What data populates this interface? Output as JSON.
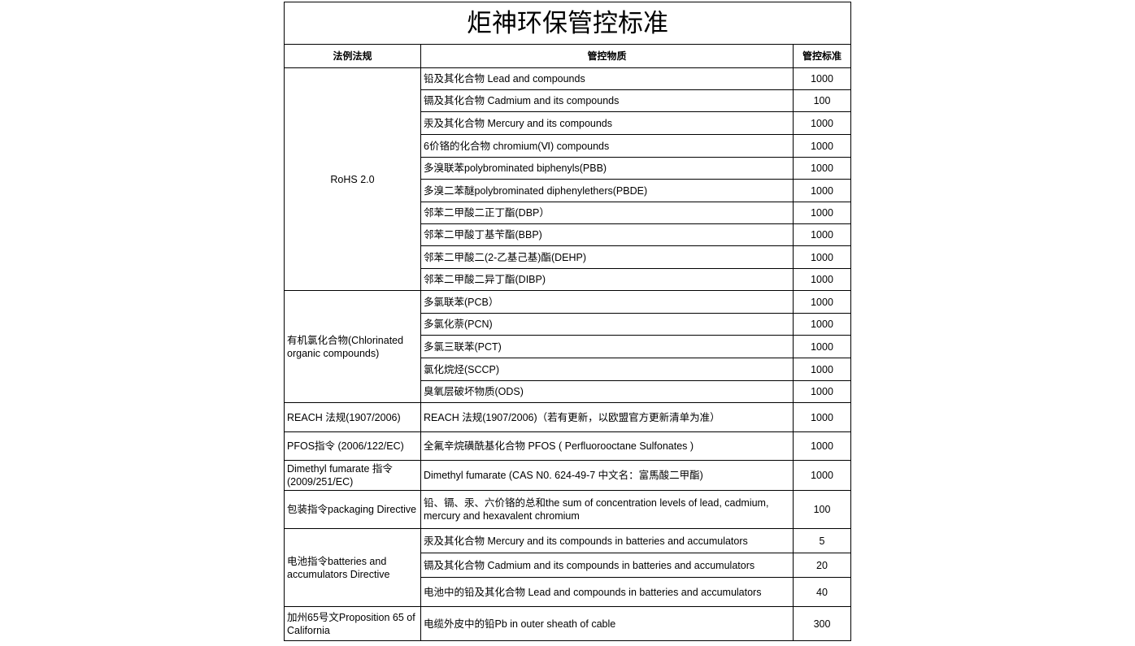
{
  "title": "炬神环保管控标准",
  "headers": {
    "regulation": "法例法规",
    "substance": "管控物质",
    "limit": "管控标准"
  },
  "groups": [
    {
      "regulation": "RoHS 2.0",
      "center": true,
      "rows": [
        {
          "substance": "铅及其化合物 Lead and compounds",
          "limit": "1000",
          "h": 27
        },
        {
          "substance": "镉及其化合物 Cadmium and its compounds",
          "limit": "100",
          "h": 27
        },
        {
          "substance": "汞及其化合物 Mercury and its compounds",
          "limit": "1000",
          "h": 28
        },
        {
          "substance": "6价铬的化合物 chromium(Ⅵ) compounds",
          "limit": "1000",
          "h": 28
        },
        {
          "substance": "多溴联苯polybrominated biphenyls(PBB)",
          "limit": "1000",
          "h": 27
        },
        {
          "substance": "多溴二苯醚polybrominated diphenylethers(PBDE)",
          "limit": "1000",
          "h": 28
        },
        {
          "substance": "邻苯二甲酸二正丁酯(DBP）",
          "limit": "1000",
          "h": 27
        },
        {
          "substance": "邻苯二甲酸丁基苄酯(BBP)",
          "limit": "1000",
          "h": 27
        },
        {
          "substance": "邻苯二甲酸二(2-乙基己基)酯(DEHP)",
          "limit": "1000",
          "h": 28
        },
        {
          "substance": "邻苯二甲酸二异丁酯(DIBP)",
          "limit": "1000",
          "h": 27
        }
      ]
    },
    {
      "regulation": "有机氯化合物(Chlorinated organic compounds)",
      "rows": [
        {
          "substance": "多氯联苯(PCB）",
          "limit": "1000",
          "h": 28
        },
        {
          "substance": "多氯化萘(PCN)",
          "limit": "1000",
          "h": 27
        },
        {
          "substance": "多氯三联苯(PCT)",
          "limit": "1000",
          "h": 28
        },
        {
          "substance": "氯化烷烃(SCCP)",
          "limit": "1000",
          "h": 28
        },
        {
          "substance": "臭氧层破坏物质(ODS)",
          "limit": "1000",
          "h": 27
        }
      ]
    },
    {
      "regulation": "REACH 法规(1907/2006)",
      "rows": [
        {
          "substance": "REACH 法规(1907/2006)（若有更新，以欧盟官方更新清单为准）",
          "limit": "1000",
          "h": 36
        }
      ]
    },
    {
      "regulation": "PFOS指令 (2006/122/EC)",
      "rows": [
        {
          "substance": "全氟辛烷磺酰基化合物 PFOS ( Perfluorooctane Sulfonates )",
          "limit": "1000",
          "h": 35
        }
      ]
    },
    {
      "regulation": "Dimethyl fumarate 指令(2009/251/EC)",
      "rows": [
        {
          "substance": "Dimethyl fumarate (CAS N0. 624-49-7 中文名：富馬酸二甲酯)",
          "limit": "1000",
          "h": 37
        }
      ]
    },
    {
      "regulation": "包装指令packaging Directive",
      "rows": [
        {
          "substance": "铅、镉、汞、六价铬的总和the sum of concentration levels of lead, cadmium, mercury and hexavalent chromium",
          "limit": "100",
          "h": 47
        }
      ]
    },
    {
      "regulation": "电池指令batteries and accumulators Directive",
      "rows": [
        {
          "substance": "汞及其化合物 Mercury and its compounds in batteries and accumulators",
          "limit": "5",
          "h": 30
        },
        {
          "substance": "镉及其化合物 Cadmium and its compounds in batteries and accumulators",
          "limit": "20",
          "h": 30
        },
        {
          "substance": "电池中的铅及其化合物 Lead and compounds in batteries and accumulators",
          "limit": "40",
          "h": 36
        }
      ]
    },
    {
      "regulation": "加州65号文Proposition 65 of California",
      "rows": [
        {
          "substance": "电缆外皮中的铅Pb in outer sheath of cable",
          "limit": "300",
          "h": 42
        }
      ]
    }
  ]
}
